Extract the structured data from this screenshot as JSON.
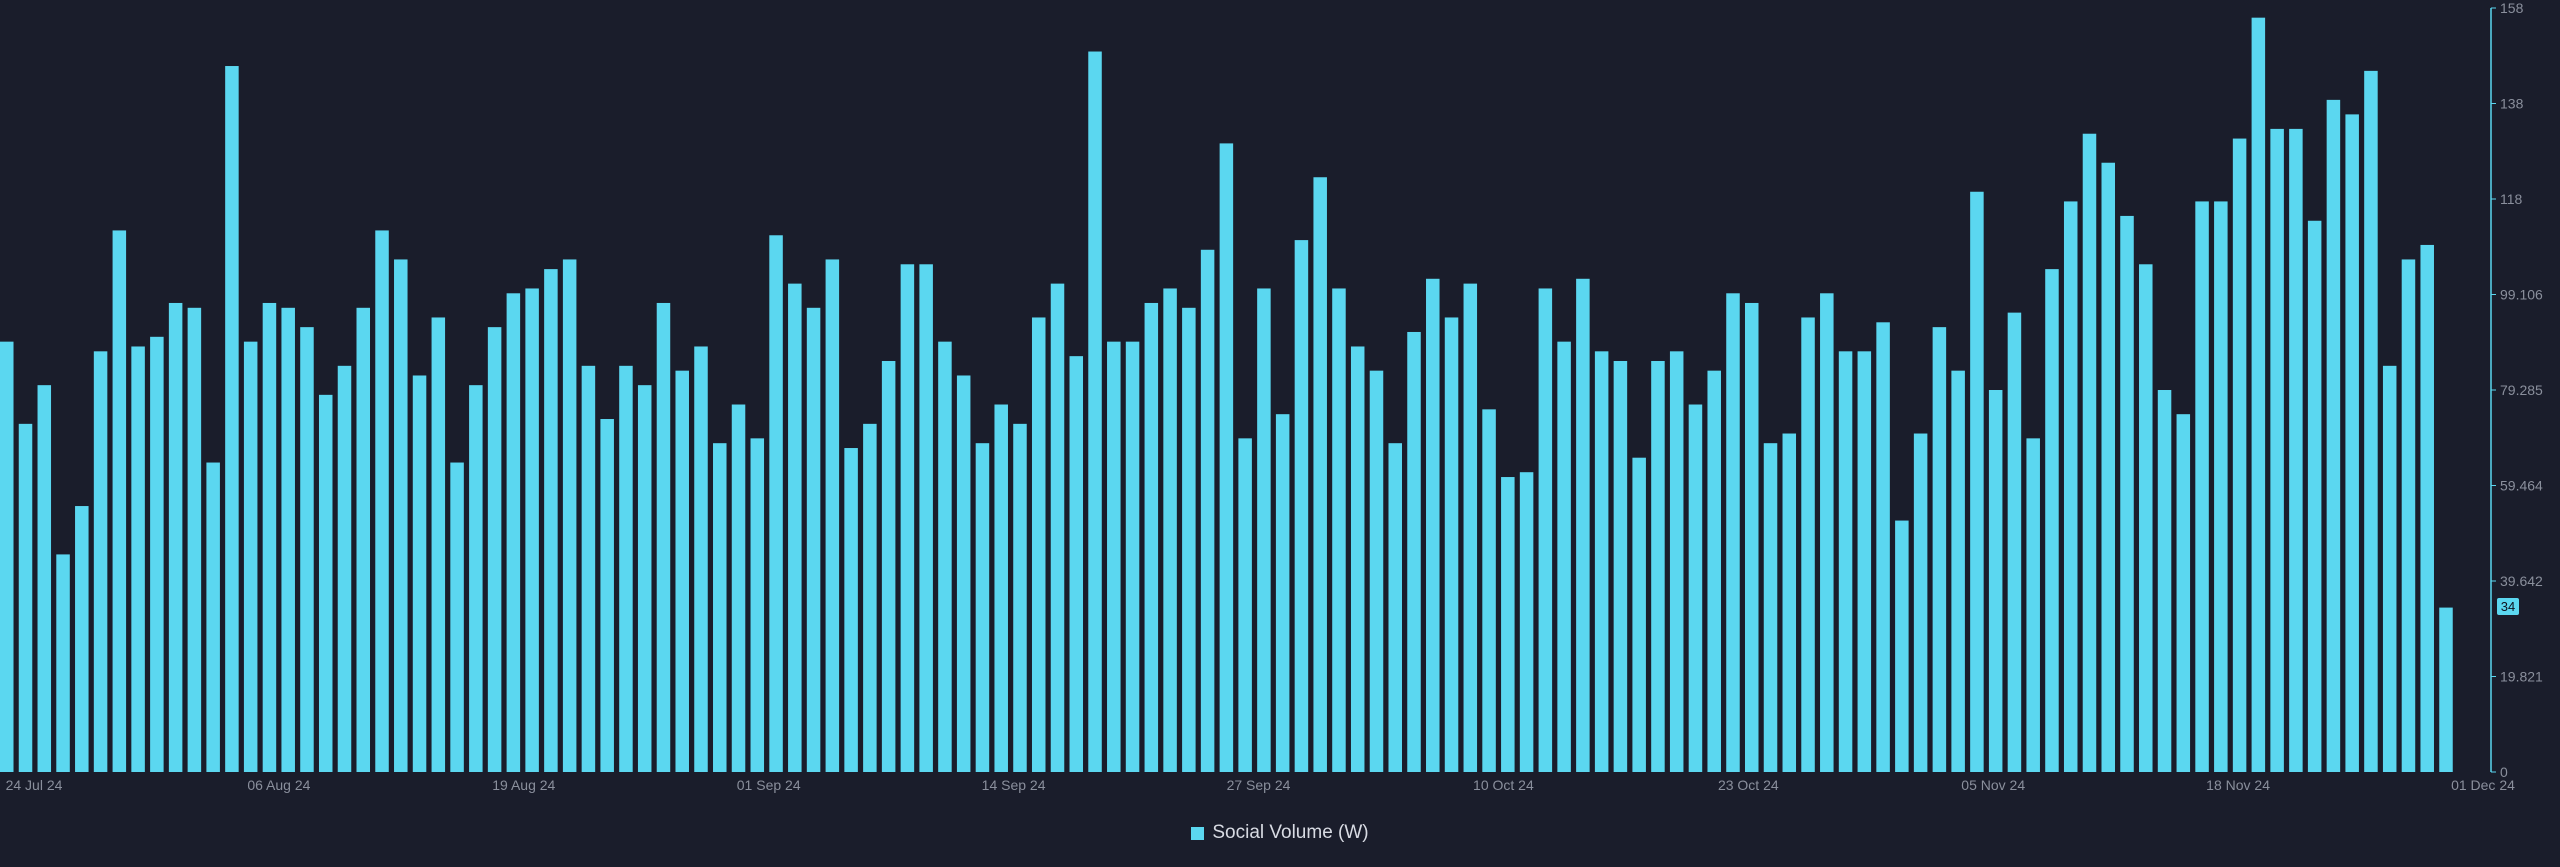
{
  "chart_data": {
    "type": "bar",
    "series": [
      {
        "name": "Social Volume (W)",
        "values": [
          89,
          72,
          80,
          45,
          55,
          87,
          112,
          88,
          90,
          97,
          96,
          64,
          146,
          89,
          97,
          96,
          92,
          78,
          84,
          96,
          112,
          106,
          82,
          94,
          64,
          80,
          92,
          99,
          100,
          104,
          106,
          84,
          73,
          84,
          80,
          97,
          83,
          88,
          68,
          76,
          69,
          111,
          101,
          96,
          106,
          67,
          72,
          85,
          105,
          105,
          89,
          82,
          68,
          76,
          72,
          94,
          101,
          86,
          149,
          89,
          89,
          97,
          100,
          96,
          108,
          130,
          69,
          100,
          74,
          110,
          123,
          100,
          88,
          83,
          68,
          91,
          102,
          94,
          101,
          75,
          61,
          62,
          100,
          89,
          102,
          87,
          85,
          65,
          85,
          87,
          76,
          83,
          99,
          97,
          68,
          70,
          94,
          99,
          87,
          87,
          93,
          52,
          70,
          92,
          83,
          120,
          79,
          95,
          69,
          104,
          118,
          132,
          126,
          115,
          105,
          79,
          74,
          118,
          118,
          131,
          156,
          133,
          133,
          114,
          139,
          136,
          145,
          84,
          106,
          109,
          34
        ]
      }
    ],
    "x_tick_labels": [
      "24 Jul 24",
      "06 Aug 24",
      "19 Aug 24",
      "01 Sep 24",
      "14 Sep 24",
      "27 Sep 24",
      "10 Oct 24",
      "23 Oct 24",
      "05 Nov 24",
      "18 Nov 24",
      "01 Dec 24"
    ],
    "y_tick_labels": [
      "0",
      "19.821",
      "39.642",
      "59.464",
      "79.285",
      "99.106",
      "118",
      "138",
      "158"
    ],
    "ylim": [
      0,
      158
    ],
    "last_value_label": "34",
    "colors": {
      "bar": "#5bd7f0",
      "background": "#1a1d2b",
      "axis_text": "#8a8f9c"
    },
    "legend_position": "bottom-center"
  },
  "legend": {
    "label": "Social Volume (W)"
  }
}
